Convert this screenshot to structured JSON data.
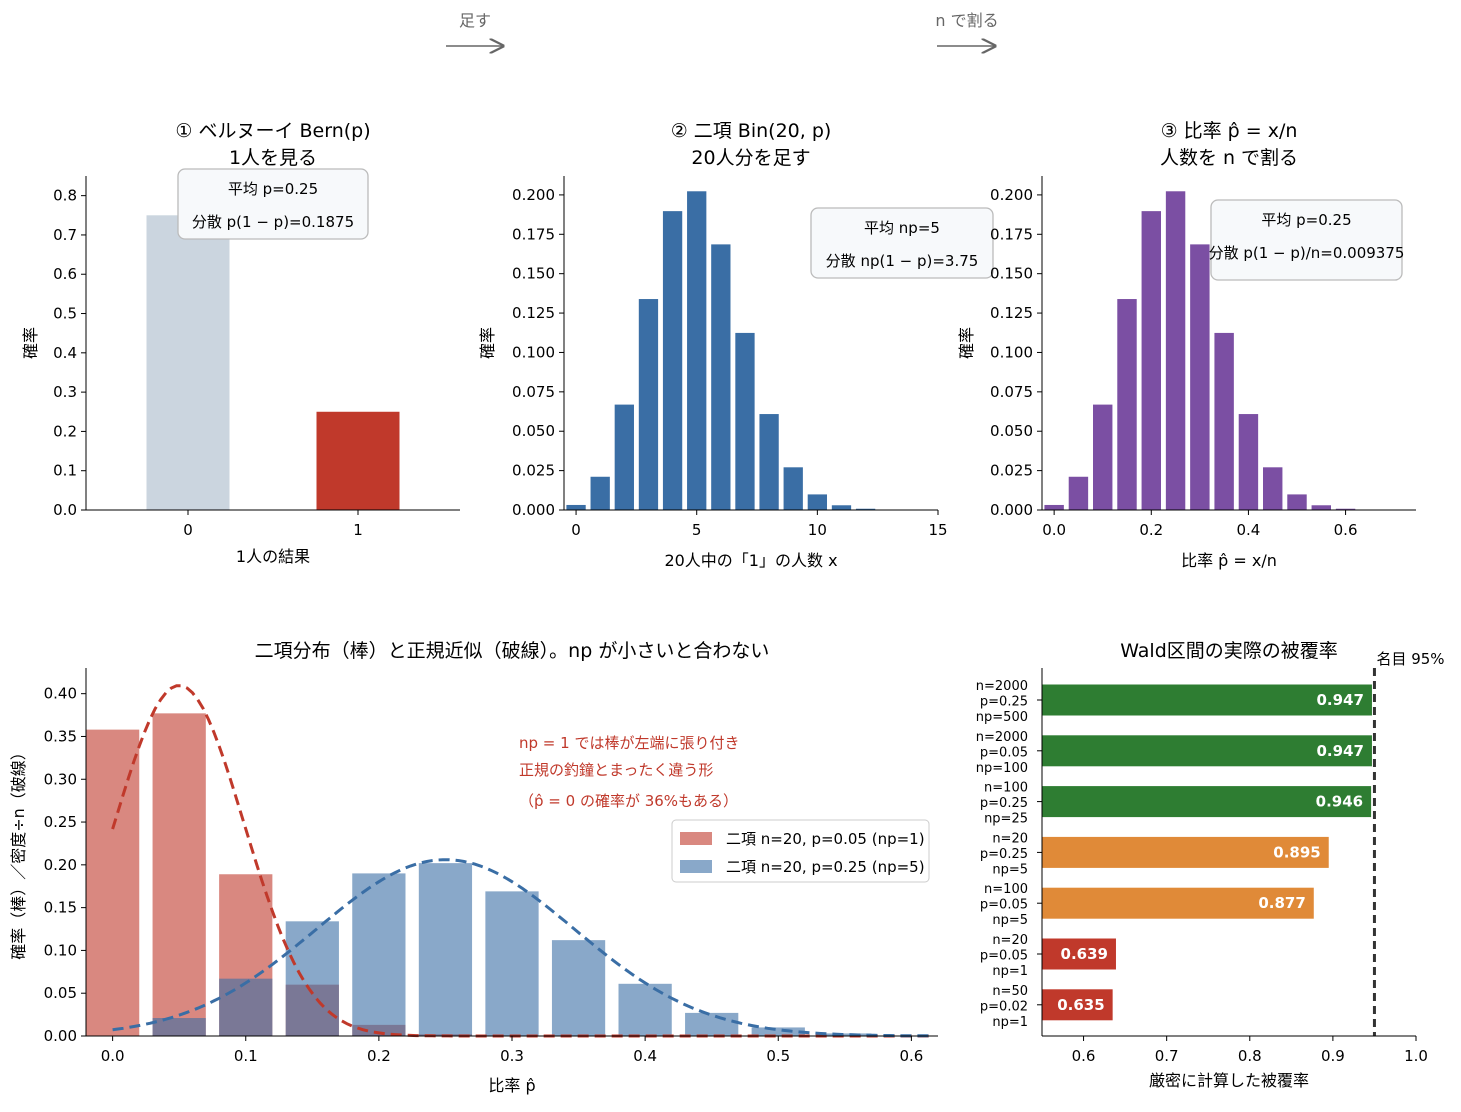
{
  "flow": {
    "step1": "足す",
    "step2": "n で割る"
  },
  "chart_data": [
    {
      "type": "bar",
      "title": "① ベルヌーイ Bern(p)",
      "subtitle": "1人を見る",
      "xlabel": "1人の結果",
      "ylabel": "確率",
      "categories": [
        "0",
        "1"
      ],
      "values": [
        0.75,
        0.25
      ],
      "colors": [
        "#cbd5df",
        "#c0392b"
      ],
      "ylim": [
        0,
        0.85
      ],
      "yticks": [
        "0.0",
        "0.1",
        "0.2",
        "0.3",
        "0.4",
        "0.5",
        "0.6",
        "0.7",
        "0.8"
      ],
      "annotation": [
        "平均 p=0.25",
        "分散 p(1 − p)=0.1875"
      ]
    },
    {
      "type": "bar",
      "title": "② 二項 Bin(20, p)",
      "subtitle": "20人分を足す",
      "xlabel": "20人中の「1」の人数 x",
      "ylabel": "確率",
      "x": [
        0,
        1,
        2,
        3,
        4,
        5,
        6,
        7,
        8,
        9,
        10,
        11,
        12,
        13,
        14,
        15
      ],
      "values": [
        0.0032,
        0.0211,
        0.0669,
        0.1339,
        0.1897,
        0.2023,
        0.1686,
        0.1124,
        0.0609,
        0.0271,
        0.0099,
        0.003,
        0.0008,
        0.0002,
        0.0,
        0.0
      ],
      "color": "#3a6ea5",
      "xlim": [
        -0.5,
        15
      ],
      "ylim": [
        0,
        0.212
      ],
      "xticks": [
        "0",
        "5",
        "10",
        "15"
      ],
      "yticks": [
        "0.000",
        "0.025",
        "0.050",
        "0.075",
        "0.100",
        "0.125",
        "0.150",
        "0.175",
        "0.200"
      ],
      "annotation": [
        "平均 np=5",
        "分散 np(1 − p)=3.75"
      ]
    },
    {
      "type": "bar",
      "title": "③ 比率 p̂ = x/n",
      "subtitle": "人数を n で割る",
      "xlabel": "比率 p̂ = x/n",
      "ylabel": "確率",
      "x": [
        0,
        0.05,
        0.1,
        0.15,
        0.2,
        0.25,
        0.3,
        0.35,
        0.4,
        0.45,
        0.5,
        0.55,
        0.6,
        0.65,
        0.7
      ],
      "values": [
        0.0032,
        0.0211,
        0.0669,
        0.1339,
        0.1897,
        0.2023,
        0.1686,
        0.1124,
        0.0609,
        0.0271,
        0.0099,
        0.003,
        0.0008,
        0.0002,
        0.0
      ],
      "color": "#7b4fa3",
      "xlim": [
        -0.025,
        0.745
      ],
      "ylim": [
        0,
        0.212
      ],
      "xticks": [
        "0.0",
        "0.2",
        "0.4",
        "0.6"
      ],
      "yticks": [
        "0.000",
        "0.025",
        "0.050",
        "0.075",
        "0.100",
        "0.125",
        "0.150",
        "0.175",
        "0.200"
      ],
      "annotation": [
        "平均 p=0.25",
        "分散 p(1 − p)/n=0.009375"
      ]
    },
    {
      "type": "bar",
      "title": "二項分布（棒）と正規近似（破線）。np が小さいと合わない",
      "xlabel": "比率 p̂",
      "ylabel": "確率（棒）／密度÷n（破線）",
      "xlim": [
        -0.02,
        0.62
      ],
      "ylim": [
        0,
        0.43
      ],
      "xticks": [
        "0.0",
        "0.1",
        "0.2",
        "0.3",
        "0.4",
        "0.5",
        "0.6"
      ],
      "yticks": [
        "0.00",
        "0.05",
        "0.10",
        "0.15",
        "0.20",
        "0.25",
        "0.30",
        "0.35",
        "0.40"
      ],
      "series": [
        {
          "name": "二項 n=20, p=0.05 (np=1)",
          "color": "#c0392b",
          "x": [
            0,
            0.05,
            0.1,
            0.15,
            0.2,
            0.25
          ],
          "values": [
            0.358,
            0.377,
            0.189,
            0.06,
            0.013,
            0.002
          ],
          "normal_mean": 0.05,
          "normal_sd": 0.0487
        },
        {
          "name": "二項 n=20, p=0.25 (np=5)",
          "color": "#3a6ea5",
          "x": [
            0.05,
            0.1,
            0.15,
            0.2,
            0.25,
            0.3,
            0.35,
            0.4,
            0.45,
            0.5,
            0.55
          ],
          "values": [
            0.021,
            0.067,
            0.134,
            0.19,
            0.202,
            0.169,
            0.112,
            0.061,
            0.027,
            0.01,
            0.003
          ],
          "normal_mean": 0.25,
          "normal_sd": 0.0968
        }
      ],
      "annotation": [
        "np = 1 では棒が左端に張り付き",
        "正規の釣鐘とまったく違う形",
        "（p̂ = 0 の確率が 36%もある）"
      ]
    },
    {
      "type": "bar",
      "orientation": "horizontal",
      "title": "Wald区間の実際の被覆率",
      "xlabel": "厳密に計算した被覆率",
      "xlim": [
        0.55,
        1.0
      ],
      "xticks": [
        "0.6",
        "0.7",
        "0.8",
        "0.9",
        "1.0"
      ],
      "reference": {
        "value": 0.95,
        "label": "名目 95%"
      },
      "bars": [
        {
          "label": [
            "n=2000",
            "p=0.25",
            "np=500"
          ],
          "value": 0.947,
          "text": "0.947",
          "color": "#2e7d32"
        },
        {
          "label": [
            "n=2000",
            "p=0.05",
            "np=100"
          ],
          "value": 0.947,
          "text": "0.947",
          "color": "#2e7d32"
        },
        {
          "label": [
            "n=100",
            "p=0.25",
            "np=25"
          ],
          "value": 0.946,
          "text": "0.946",
          "color": "#2e7d32"
        },
        {
          "label": [
            "n=20",
            "p=0.25",
            "np=5"
          ],
          "value": 0.895,
          "text": "0.895",
          "color": "#e08a38"
        },
        {
          "label": [
            "n=100",
            "p=0.05",
            "np=5"
          ],
          "value": 0.877,
          "text": "0.877",
          "color": "#e08a38"
        },
        {
          "label": [
            "n=20",
            "p=0.05",
            "np=1"
          ],
          "value": 0.639,
          "text": "0.639",
          "color": "#c0392b"
        },
        {
          "label": [
            "n=50",
            "p=0.02",
            "np=1"
          ],
          "value": 0.635,
          "text": "0.635",
          "color": "#c0392b"
        }
      ]
    }
  ]
}
